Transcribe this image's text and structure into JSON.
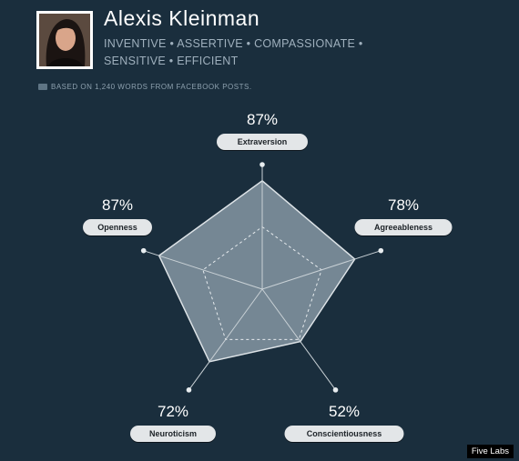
{
  "profile": {
    "name": "Alexis Kleinman",
    "traits_line1": "INVENTIVE • ASSERTIVE • COMPASSIONATE •",
    "traits_line2": "SENSITIVE • EFFICIENT",
    "basis": "BASED ON 1,240 WORDS FROM FACEBOOK POSTS."
  },
  "chart_data": {
    "type": "radar",
    "categories": [
      "Extraversion",
      "Agreeableness",
      "Conscientiousness",
      "Neuroticism",
      "Openness"
    ],
    "values": [
      87,
      78,
      52,
      72,
      87
    ],
    "value_labels": [
      "87%",
      "78%",
      "52%",
      "72%",
      "87%"
    ],
    "range": [
      0,
      100
    ],
    "reference_ring": 50,
    "colors": {
      "background": "#1a2e3d",
      "polygon_fill": "#7d8f9b",
      "axis": "#c9d1d6",
      "pill_bg": "#e3e6e8"
    }
  },
  "footer": {
    "credit": "Five Labs"
  }
}
